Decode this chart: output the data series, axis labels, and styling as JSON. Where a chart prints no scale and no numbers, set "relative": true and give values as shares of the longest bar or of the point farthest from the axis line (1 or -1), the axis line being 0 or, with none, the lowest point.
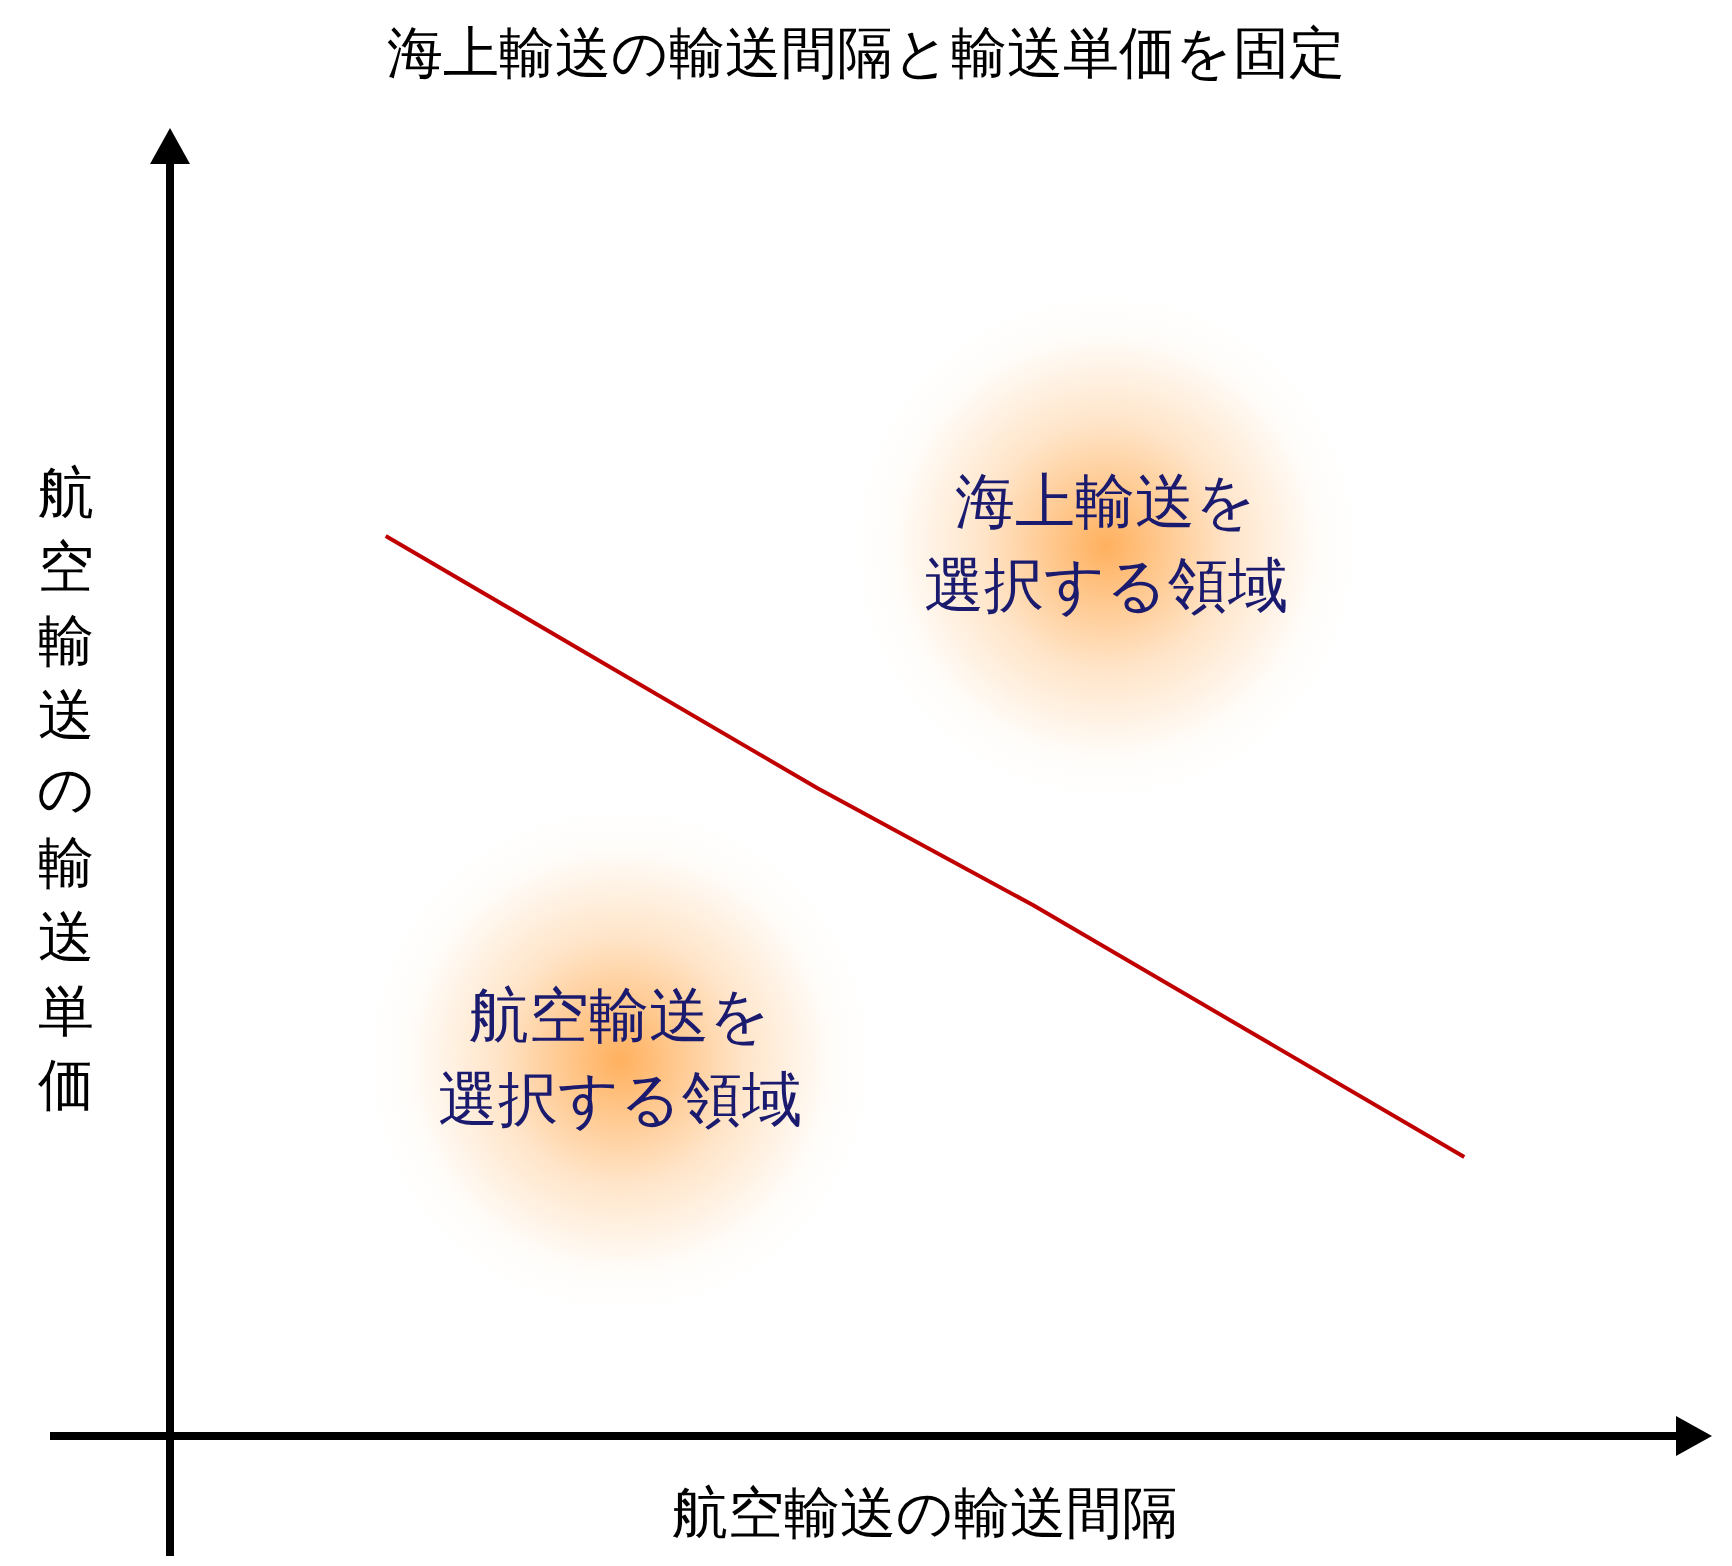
{
  "chart_data": {
    "type": "line",
    "title": "海上輸送の輸送間隔と輸送単価を固定",
    "xlabel": "航空輸送の輸送間隔",
    "ylabel": "航空輸送の輸送単価",
    "relative": true,
    "marker": "none",
    "legend": false,
    "categories": [
      null,
      null,
      null,
      null,
      null,
      null,
      null,
      null
    ],
    "series": [
      {
        "color": "#c00000",
        "values": [
          null,
          1,
          0.86,
          0.72,
          0.59,
          0.45,
          0.31,
          null
        ]
      }
    ],
    "annotations": [
      "海上輸送を選択する領域",
      "航空輸送を選択する領域"
    ]
  }
}
